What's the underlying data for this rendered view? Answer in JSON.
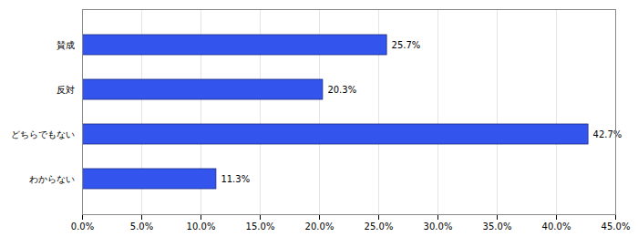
{
  "chart_data": {
    "type": "bar",
    "orientation": "horizontal",
    "categories": [
      "賛成",
      "反対",
      "どちらでもない",
      "わからない"
    ],
    "values": [
      25.7,
      20.3,
      42.7,
      11.3
    ],
    "value_labels": [
      "25.7%",
      "20.3%",
      "42.7%",
      "11.3%"
    ],
    "data_labels": true,
    "color": "#3355ee",
    "xlim": [
      0,
      45
    ],
    "xticks": [
      {
        "value": 0,
        "label": "0.0%"
      },
      {
        "value": 5,
        "label": "5.0%"
      },
      {
        "value": 10,
        "label": "10.0%"
      },
      {
        "value": 15,
        "label": "15.0%"
      },
      {
        "value": 20,
        "label": "20.0%"
      },
      {
        "value": 25,
        "label": "25.0%"
      },
      {
        "value": 30,
        "label": "30.0%"
      },
      {
        "value": 35,
        "label": "35.0%"
      },
      {
        "value": 40,
        "label": "40.0%"
      },
      {
        "value": 45,
        "label": "45.0%"
      }
    ],
    "grid": true
  }
}
